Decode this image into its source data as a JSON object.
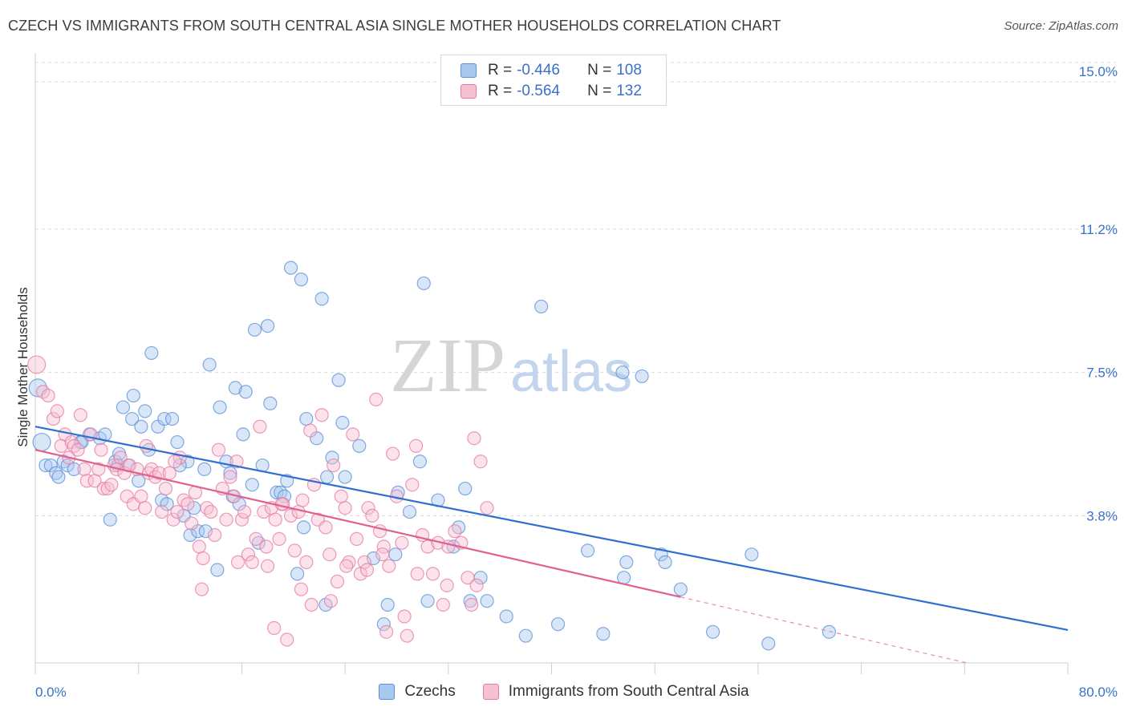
{
  "title": "CZECH VS IMMIGRANTS FROM SOUTH CENTRAL ASIA SINGLE MOTHER HOUSEHOLDS CORRELATION CHART",
  "source": "Source: ZipAtlas.com",
  "watermark": {
    "zip": "ZIP",
    "atlas": "atlas"
  },
  "legend": {
    "rows": [
      {
        "r_label": "R =",
        "r_value": "-0.446",
        "n_label": "N =",
        "n_value": "108",
        "color": "#a9c8f0",
        "border": "#5b8fd6"
      },
      {
        "r_label": "R =",
        "r_value": "-0.564",
        "n_label": "N =",
        "n_value": "132",
        "color": "#f7bfd2",
        "border": "#e57aa0"
      }
    ]
  },
  "bottom_legend": [
    {
      "label": "Czechs",
      "color": "#a9c8f0",
      "border": "#5b8fd6"
    },
    {
      "label": "Immigrants from South Central Asia",
      "color": "#f7bfd2",
      "border": "#e57aa0"
    }
  ],
  "chart_data": {
    "type": "scatter",
    "ylabel": "Single Mother Households",
    "xlim": [
      0,
      80
    ],
    "ylim": [
      0,
      15.5
    ],
    "x_tick_labels": [
      "0.0%",
      "80.0%"
    ],
    "y_ticks": [
      3.8,
      7.5,
      11.2,
      15.0
    ],
    "y_tick_labels": [
      "3.8%",
      "7.5%",
      "11.2%",
      "15.0%"
    ],
    "grid": "horizontal dashed",
    "legend_position": "top-center",
    "series": [
      {
        "name": "Czechs",
        "color": "#5b8fd6",
        "fill": "#a9c8f0",
        "trend": {
          "x": [
            0,
            80
          ],
          "y": [
            6.1,
            0.85
          ],
          "style": "solid"
        },
        "points": [
          [
            0.2,
            7.1
          ],
          [
            0.5,
            5.7
          ],
          [
            0.8,
            5.1
          ],
          [
            1.2,
            5.1
          ],
          [
            1.6,
            4.9
          ],
          [
            1.8,
            4.8
          ],
          [
            2.2,
            5.2
          ],
          [
            2.5,
            5.1
          ],
          [
            3.0,
            5.0
          ],
          [
            3.5,
            5.7
          ],
          [
            4.2,
            5.9
          ],
          [
            5.0,
            5.8
          ],
          [
            5.4,
            5.9
          ],
          [
            5.8,
            3.7
          ],
          [
            6.2,
            5.2
          ],
          [
            6.5,
            5.4
          ],
          [
            6.8,
            6.6
          ],
          [
            7.2,
            5.1
          ],
          [
            7.5,
            6.3
          ],
          [
            7.6,
            6.9
          ],
          [
            8.0,
            4.7
          ],
          [
            8.2,
            6.1
          ],
          [
            8.5,
            6.5
          ],
          [
            8.8,
            5.5
          ],
          [
            9.0,
            8.0
          ],
          [
            9.5,
            6.1
          ],
          [
            9.8,
            4.2
          ],
          [
            10.0,
            6.3
          ],
          [
            10.2,
            4.1
          ],
          [
            10.6,
            6.3
          ],
          [
            11.0,
            5.7
          ],
          [
            11.5,
            3.8
          ],
          [
            11.8,
            5.2
          ],
          [
            12.0,
            3.3
          ],
          [
            12.3,
            4.0
          ],
          [
            12.6,
            3.4
          ],
          [
            13.2,
            3.4
          ],
          [
            13.1,
            5.0
          ],
          [
            13.5,
            7.7
          ],
          [
            14.1,
            2.4
          ],
          [
            14.3,
            6.6
          ],
          [
            14.8,
            5.2
          ],
          [
            15.1,
            4.9
          ],
          [
            15.3,
            4.3
          ],
          [
            15.5,
            7.1
          ],
          [
            15.8,
            4.1
          ],
          [
            16.1,
            5.9
          ],
          [
            16.3,
            7.0
          ],
          [
            17.0,
            8.6
          ],
          [
            17.3,
            3.1
          ],
          [
            17.6,
            5.1
          ],
          [
            18.0,
            8.7
          ],
          [
            18.2,
            6.7
          ],
          [
            18.7,
            4.4
          ],
          [
            19.0,
            4.4
          ],
          [
            19.3,
            4.3
          ],
          [
            19.5,
            4.7
          ],
          [
            19.8,
            10.2
          ],
          [
            20.3,
            2.3
          ],
          [
            20.6,
            9.9
          ],
          [
            20.8,
            3.5
          ],
          [
            21.0,
            6.3
          ],
          [
            21.8,
            5.8
          ],
          [
            22.2,
            9.4
          ],
          [
            22.5,
            1.5
          ],
          [
            23.0,
            5.3
          ],
          [
            23.5,
            7.3
          ],
          [
            23.8,
            6.2
          ],
          [
            24.0,
            4.8
          ],
          [
            25.1,
            5.6
          ],
          [
            26.2,
            2.7
          ],
          [
            27.0,
            1.0
          ],
          [
            27.3,
            1.5
          ],
          [
            28.1,
            4.4
          ],
          [
            29.0,
            3.9
          ],
          [
            29.8,
            5.2
          ],
          [
            30.1,
            9.8
          ],
          [
            30.4,
            1.6
          ],
          [
            31.2,
            4.2
          ],
          [
            32.4,
            3.0
          ],
          [
            32.8,
            3.5
          ],
          [
            33.3,
            4.5
          ],
          [
            34.5,
            2.2
          ],
          [
            35.0,
            1.6
          ],
          [
            36.5,
            1.2
          ],
          [
            38.0,
            0.7
          ],
          [
            39.2,
            9.2
          ],
          [
            40.5,
            1.0
          ],
          [
            42.8,
            2.9
          ],
          [
            44.0,
            0.75
          ],
          [
            45.5,
            7.5
          ],
          [
            45.8,
            2.6
          ],
          [
            45.6,
            2.2
          ],
          [
            47.0,
            7.4
          ],
          [
            48.5,
            2.8
          ],
          [
            48.8,
            2.6
          ],
          [
            50.0,
            1.9
          ],
          [
            52.5,
            0.8
          ],
          [
            55.5,
            2.8
          ],
          [
            56.8,
            0.5
          ],
          [
            61.5,
            0.8
          ],
          [
            3.6,
            5.7
          ],
          [
            6.4,
            5.1
          ],
          [
            11.2,
            5.1
          ],
          [
            16.8,
            4.6
          ],
          [
            22.6,
            4.8
          ],
          [
            27.9,
            2.8
          ],
          [
            33.7,
            1.6
          ]
        ]
      },
      {
        "name": "Immigrants from South Central Asia",
        "color": "#e57aa0",
        "fill": "#f7bfd2",
        "trend": {
          "x": [
            0,
            50
          ],
          "y": [
            5.5,
            1.7
          ],
          "style": "solid"
        },
        "trend_extension": {
          "x": [
            50,
            80
          ],
          "y": [
            1.7,
            -0.6
          ],
          "style": "dashed"
        },
        "points": [
          [
            0.1,
            7.7
          ],
          [
            0.6,
            7.0
          ],
          [
            1.0,
            6.9
          ],
          [
            1.4,
            6.3
          ],
          [
            1.7,
            6.5
          ],
          [
            2.0,
            5.6
          ],
          [
            2.3,
            5.9
          ],
          [
            2.6,
            5.3
          ],
          [
            2.8,
            5.7
          ],
          [
            3.0,
            5.6
          ],
          [
            3.3,
            5.5
          ],
          [
            3.5,
            6.4
          ],
          [
            3.8,
            5.0
          ],
          [
            4.0,
            4.7
          ],
          [
            4.3,
            5.9
          ],
          [
            4.6,
            4.7
          ],
          [
            4.9,
            5.0
          ],
          [
            5.1,
            5.5
          ],
          [
            5.3,
            4.5
          ],
          [
            5.6,
            4.5
          ],
          [
            5.9,
            4.6
          ],
          [
            6.1,
            5.1
          ],
          [
            6.3,
            5.0
          ],
          [
            6.6,
            5.3
          ],
          [
            6.9,
            4.9
          ],
          [
            7.1,
            4.3
          ],
          [
            7.3,
            5.1
          ],
          [
            7.6,
            4.1
          ],
          [
            7.9,
            5.0
          ],
          [
            8.2,
            4.3
          ],
          [
            8.5,
            4.0
          ],
          [
            8.8,
            4.9
          ],
          [
            9.0,
            5.0
          ],
          [
            9.3,
            4.8
          ],
          [
            9.6,
            4.9
          ],
          [
            9.8,
            3.9
          ],
          [
            10.1,
            4.5
          ],
          [
            10.4,
            4.9
          ],
          [
            10.7,
            3.7
          ],
          [
            11.0,
            3.9
          ],
          [
            11.2,
            5.3
          ],
          [
            11.5,
            4.2
          ],
          [
            11.8,
            4.1
          ],
          [
            12.1,
            3.6
          ],
          [
            12.4,
            4.4
          ],
          [
            12.7,
            3.0
          ],
          [
            13.0,
            2.7
          ],
          [
            13.3,
            4.0
          ],
          [
            13.6,
            3.9
          ],
          [
            13.9,
            3.3
          ],
          [
            14.2,
            5.5
          ],
          [
            14.5,
            4.5
          ],
          [
            14.8,
            3.7
          ],
          [
            15.1,
            4.8
          ],
          [
            15.4,
            4.3
          ],
          [
            15.7,
            2.6
          ],
          [
            16.0,
            3.7
          ],
          [
            16.2,
            3.9
          ],
          [
            16.5,
            2.8
          ],
          [
            16.8,
            2.6
          ],
          [
            17.1,
            3.2
          ],
          [
            17.4,
            6.1
          ],
          [
            17.7,
            3.9
          ],
          [
            18.0,
            2.5
          ],
          [
            18.3,
            4.0
          ],
          [
            18.6,
            3.7
          ],
          [
            18.9,
            3.2
          ],
          [
            19.2,
            4.1
          ],
          [
            19.5,
            0.6
          ],
          [
            19.8,
            3.8
          ],
          [
            20.1,
            2.9
          ],
          [
            20.4,
            3.9
          ],
          [
            20.7,
            4.2
          ],
          [
            21.0,
            2.6
          ],
          [
            21.3,
            6.0
          ],
          [
            21.6,
            4.6
          ],
          [
            21.9,
            3.7
          ],
          [
            22.2,
            6.4
          ],
          [
            22.5,
            3.5
          ],
          [
            22.8,
            2.8
          ],
          [
            23.1,
            5.1
          ],
          [
            23.4,
            2.1
          ],
          [
            23.7,
            4.3
          ],
          [
            24.0,
            4.0
          ],
          [
            24.3,
            2.6
          ],
          [
            24.6,
            5.9
          ],
          [
            24.9,
            3.2
          ],
          [
            25.2,
            2.3
          ],
          [
            25.5,
            2.6
          ],
          [
            25.8,
            4.0
          ],
          [
            26.1,
            3.8
          ],
          [
            26.4,
            6.8
          ],
          [
            26.7,
            3.4
          ],
          [
            27.0,
            3.0
          ],
          [
            27.4,
            2.5
          ],
          [
            27.7,
            5.4
          ],
          [
            28.0,
            4.3
          ],
          [
            28.4,
            3.1
          ],
          [
            28.8,
            0.7
          ],
          [
            29.2,
            4.6
          ],
          [
            29.5,
            5.6
          ],
          [
            30.0,
            3.3
          ],
          [
            30.4,
            3.0
          ],
          [
            30.8,
            2.3
          ],
          [
            31.2,
            3.1
          ],
          [
            31.6,
            1.5
          ],
          [
            32.0,
            3.0
          ],
          [
            32.5,
            3.4
          ],
          [
            33.0,
            3.1
          ],
          [
            33.5,
            2.2
          ],
          [
            34.0,
            5.8
          ],
          [
            34.5,
            5.2
          ],
          [
            35.0,
            4.0
          ],
          [
            18.5,
            0.9
          ],
          [
            21.4,
            1.5
          ],
          [
            24.1,
            2.5
          ],
          [
            26.9,
            2.8
          ],
          [
            29.6,
            2.3
          ],
          [
            33.8,
            1.5
          ],
          [
            12.9,
            1.9
          ],
          [
            17.9,
            3.0
          ],
          [
            20.6,
            1.9
          ],
          [
            22.9,
            1.6
          ],
          [
            25.7,
            2.4
          ],
          [
            27.2,
            0.8
          ],
          [
            28.6,
            1.2
          ],
          [
            31.9,
            2.0
          ],
          [
            34.2,
            2.0
          ],
          [
            8.6,
            5.6
          ],
          [
            10.8,
            5.2
          ],
          [
            15.6,
            5.2
          ],
          [
            19.1,
            4.1
          ]
        ]
      }
    ]
  }
}
